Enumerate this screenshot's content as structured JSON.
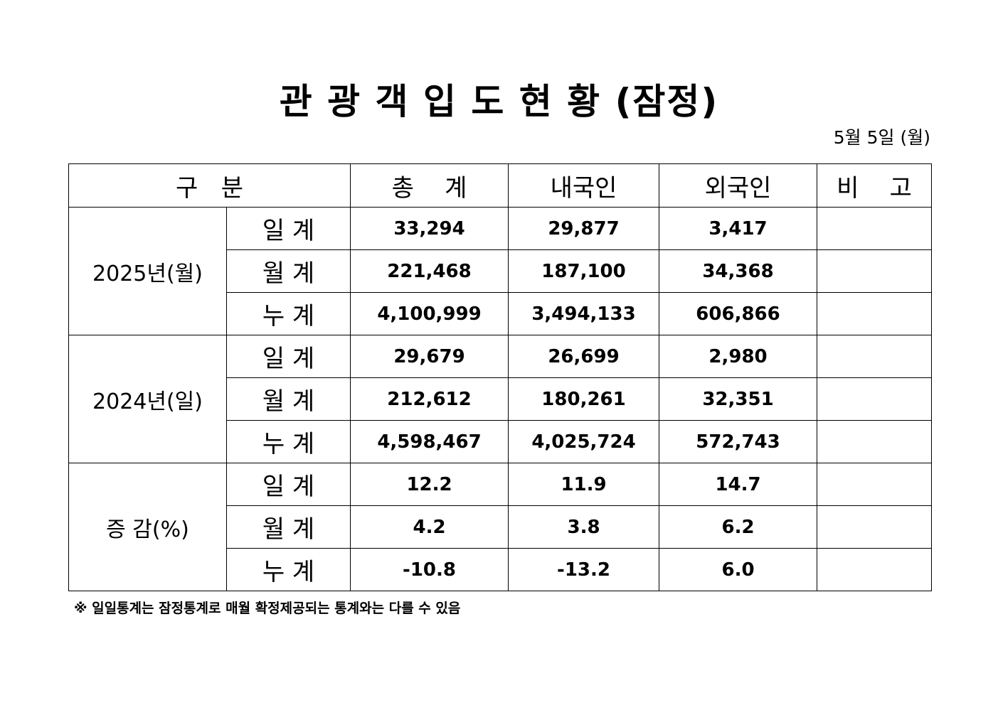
{
  "title": "관 광 객 입 도 현 황 (잠정)",
  "date": "5월 5일 (월)",
  "header": {
    "category": "구   분",
    "total": "총    계",
    "domestic": "내국인",
    "foreign": "외국인",
    "note": "비    고"
  },
  "groups": [
    {
      "label": "2025년(월)",
      "rows": [
        {
          "label": "일 계",
          "total": "33,294",
          "domestic": "29,877",
          "foreign": "3,417",
          "note": ""
        },
        {
          "label": "월 계",
          "total": "221,468",
          "domestic": "187,100",
          "foreign": "34,368",
          "note": ""
        },
        {
          "label": "누 계",
          "total": "4,100,999",
          "domestic": "3,494,133",
          "foreign": "606,866",
          "note": ""
        }
      ]
    },
    {
      "label": "2024년(일)",
      "rows": [
        {
          "label": "일 계",
          "total": "29,679",
          "domestic": "26,699",
          "foreign": "2,980",
          "note": ""
        },
        {
          "label": "월 계",
          "total": "212,612",
          "domestic": "180,261",
          "foreign": "32,351",
          "note": ""
        },
        {
          "label": "누 계",
          "total": "4,598,467",
          "domestic": "4,025,724",
          "foreign": "572,743",
          "note": ""
        }
      ]
    },
    {
      "label": "증 감(%)",
      "rows": [
        {
          "label": "일 계",
          "total": "12.2",
          "domestic": "11.9",
          "foreign": "14.7",
          "note": ""
        },
        {
          "label": "월 계",
          "total": "4.2",
          "domestic": "3.8",
          "foreign": "6.2",
          "note": ""
        },
        {
          "label": "누 계",
          "total": "-10.8",
          "domestic": "-13.2",
          "foreign": "6.0",
          "note": ""
        }
      ]
    }
  ],
  "footnote": "※ 일일통계는 잠정통계로 매월 확정제공되는 통계와는 다를 수 있음"
}
